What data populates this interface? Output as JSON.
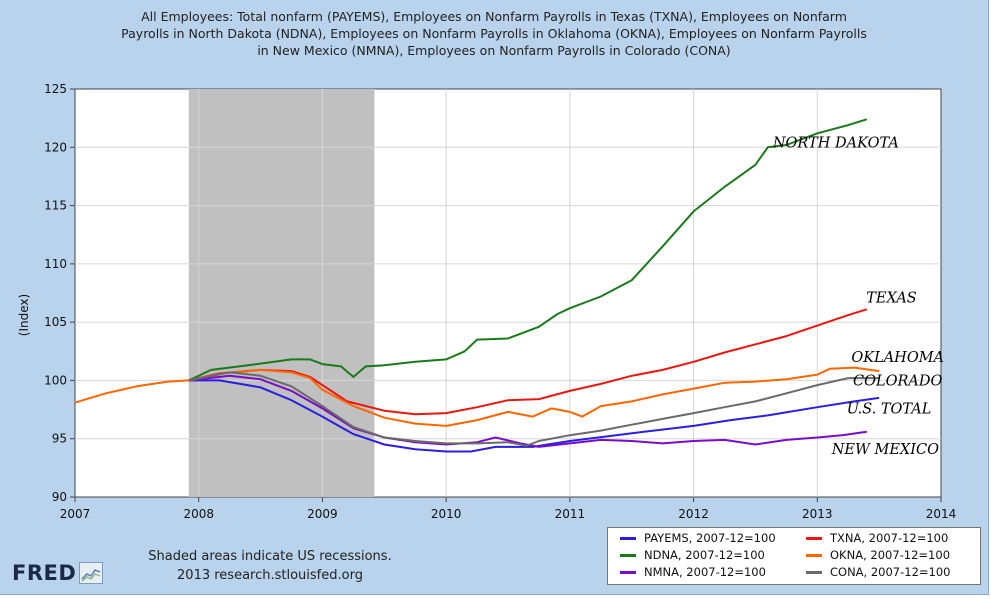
{
  "chart_data": {
    "type": "line",
    "title_lines": [
      "All Employees: Total nonfarm (PAYEMS), Employees on Nonfarm Payrolls in Texas (TXNA), Employees on Nonfarm",
      "Payrolls in North Dakota (NDNA), Employees on Nonfarm Payrolls in Oklahoma (OKNA), Employees on Nonfarm Payrolls",
      "in New Mexico (NMNA), Employees on Nonfarm Payrolls in Colorado (CONA)"
    ],
    "ylabel": "(Index)",
    "xlabel": "",
    "xlim": [
      2007,
      2014
    ],
    "ylim": [
      90,
      125
    ],
    "x_ticks": [
      "2007",
      "2008",
      "2009",
      "2010",
      "2011",
      "2012",
      "2013",
      "2014"
    ],
    "y_ticks": [
      "90",
      "95",
      "100",
      "105",
      "110",
      "115",
      "120",
      "125"
    ],
    "grid": true,
    "recession_band": [
      2007.92,
      2009.42
    ],
    "series": [
      {
        "name": "PAYEMS, 2007-12=100",
        "color": "#2a1ee0",
        "points": [
          [
            2007.92,
            100
          ],
          [
            2008.17,
            100
          ],
          [
            2008.5,
            99.4
          ],
          [
            2008.75,
            98.3
          ],
          [
            2009,
            96.9
          ],
          [
            2009.25,
            95.4
          ],
          [
            2009.5,
            94.5
          ],
          [
            2009.75,
            94.1
          ],
          [
            2010,
            93.9
          ],
          [
            2010.2,
            93.9
          ],
          [
            2010.4,
            94.3
          ],
          [
            2010.7,
            94.3
          ],
          [
            2011,
            94.8
          ],
          [
            2011.3,
            95.2
          ],
          [
            2011.6,
            95.6
          ],
          [
            2012,
            96.1
          ],
          [
            2012.3,
            96.6
          ],
          [
            2012.6,
            97
          ],
          [
            2013,
            97.7
          ],
          [
            2013.3,
            98.2
          ],
          [
            2013.5,
            98.5
          ]
        ]
      },
      {
        "name": "TXNA, 2007-12=100",
        "color": "#e8170f",
        "points": [
          [
            2007.92,
            100
          ],
          [
            2008.17,
            100.6
          ],
          [
            2008.5,
            100.9
          ],
          [
            2008.75,
            100.8
          ],
          [
            2008.9,
            100.3
          ],
          [
            2009,
            99.6
          ],
          [
            2009.2,
            98.2
          ],
          [
            2009.5,
            97.4
          ],
          [
            2009.75,
            97.1
          ],
          [
            2010,
            97.2
          ],
          [
            2010.25,
            97.7
          ],
          [
            2010.5,
            98.3
          ],
          [
            2010.75,
            98.4
          ],
          [
            2011,
            99.1
          ],
          [
            2011.25,
            99.7
          ],
          [
            2011.5,
            100.4
          ],
          [
            2011.75,
            100.9
          ],
          [
            2012,
            101.6
          ],
          [
            2012.25,
            102.4
          ],
          [
            2012.5,
            103.1
          ],
          [
            2012.75,
            103.8
          ],
          [
            2013,
            104.7
          ],
          [
            2013.25,
            105.6
          ],
          [
            2013.4,
            106.1
          ]
        ]
      },
      {
        "name": "NDNA, 2007-12=100",
        "color": "#1a7a1a",
        "points": [
          [
            2007.92,
            100
          ],
          [
            2008.1,
            100.9
          ],
          [
            2008.4,
            101.3
          ],
          [
            2008.75,
            101.8
          ],
          [
            2008.9,
            101.8
          ],
          [
            2009,
            101.4
          ],
          [
            2009.15,
            101.2
          ],
          [
            2009.25,
            100.3
          ],
          [
            2009.35,
            101.2
          ],
          [
            2009.5,
            101.3
          ],
          [
            2009.75,
            101.6
          ],
          [
            2010,
            101.8
          ],
          [
            2010.15,
            102.5
          ],
          [
            2010.25,
            103.5
          ],
          [
            2010.5,
            103.6
          ],
          [
            2010.75,
            104.6
          ],
          [
            2010.9,
            105.7
          ],
          [
            2011,
            106.2
          ],
          [
            2011.25,
            107.2
          ],
          [
            2011.5,
            108.6
          ],
          [
            2011.75,
            111.5
          ],
          [
            2012,
            114.5
          ],
          [
            2012.25,
            116.6
          ],
          [
            2012.5,
            118.5
          ],
          [
            2012.6,
            120
          ],
          [
            2012.75,
            120.2
          ],
          [
            2013,
            121.2
          ],
          [
            2013.25,
            121.9
          ],
          [
            2013.4,
            122.4
          ]
        ]
      },
      {
        "name": "OKNA, 2007-12=100",
        "color": "#ff6600",
        "points": [
          [
            2007,
            98.1
          ],
          [
            2007.25,
            98.9
          ],
          [
            2007.5,
            99.5
          ],
          [
            2007.75,
            99.9
          ],
          [
            2007.92,
            100
          ],
          [
            2008.2,
            100.6
          ],
          [
            2008.5,
            100.9
          ],
          [
            2008.75,
            100.7
          ],
          [
            2008.9,
            100.2
          ],
          [
            2009,
            99.2
          ],
          [
            2009.25,
            97.8
          ],
          [
            2009.5,
            96.8
          ],
          [
            2009.75,
            96.3
          ],
          [
            2010,
            96.1
          ],
          [
            2010.25,
            96.6
          ],
          [
            2010.5,
            97.3
          ],
          [
            2010.7,
            96.9
          ],
          [
            2010.85,
            97.6
          ],
          [
            2011,
            97.3
          ],
          [
            2011.1,
            96.9
          ],
          [
            2011.25,
            97.8
          ],
          [
            2011.5,
            98.2
          ],
          [
            2011.75,
            98.8
          ],
          [
            2012,
            99.3
          ],
          [
            2012.25,
            99.8
          ],
          [
            2012.5,
            99.9
          ],
          [
            2012.75,
            100.1
          ],
          [
            2013,
            100.5
          ],
          [
            2013.1,
            101
          ],
          [
            2013.3,
            101.1
          ],
          [
            2013.5,
            100.8
          ]
        ]
      },
      {
        "name": "NMNA, 2007-12=100",
        "color": "#7a0dc8",
        "points": [
          [
            2007.92,
            100
          ],
          [
            2008.25,
            100.4
          ],
          [
            2008.5,
            100.1
          ],
          [
            2008.75,
            99.1
          ],
          [
            2009,
            97.6
          ],
          [
            2009.25,
            95.9
          ],
          [
            2009.5,
            95.1
          ],
          [
            2009.75,
            94.7
          ],
          [
            2010,
            94.5
          ],
          [
            2010.25,
            94.7
          ],
          [
            2010.4,
            95.1
          ],
          [
            2010.6,
            94.6
          ],
          [
            2010.75,
            94.3
          ],
          [
            2011,
            94.6
          ],
          [
            2011.25,
            94.9
          ],
          [
            2011.5,
            94.8
          ],
          [
            2011.75,
            94.6
          ],
          [
            2012,
            94.8
          ],
          [
            2012.25,
            94.9
          ],
          [
            2012.5,
            94.5
          ],
          [
            2012.75,
            94.9
          ],
          [
            2013,
            95.1
          ],
          [
            2013.2,
            95.3
          ],
          [
            2013.4,
            95.6
          ]
        ]
      },
      {
        "name": "CONA, 2007-12=100",
        "color": "#6a6a6a",
        "points": [
          [
            2007.92,
            100
          ],
          [
            2008.25,
            100.7
          ],
          [
            2008.5,
            100.4
          ],
          [
            2008.75,
            99.5
          ],
          [
            2009,
            97.8
          ],
          [
            2009.25,
            96
          ],
          [
            2009.5,
            95.1
          ],
          [
            2009.75,
            94.8
          ],
          [
            2010,
            94.6
          ],
          [
            2010.25,
            94.6
          ],
          [
            2010.5,
            94.7
          ],
          [
            2010.65,
            94.4
          ],
          [
            2010.75,
            94.8
          ],
          [
            2011,
            95.3
          ],
          [
            2011.25,
            95.7
          ],
          [
            2011.5,
            96.2
          ],
          [
            2011.75,
            96.7
          ],
          [
            2012,
            97.2
          ],
          [
            2012.25,
            97.7
          ],
          [
            2012.5,
            98.2
          ],
          [
            2012.75,
            98.9
          ],
          [
            2013,
            99.6
          ],
          [
            2013.25,
            100.2
          ],
          [
            2013.5,
            100.2
          ]
        ]
      }
    ],
    "annotations": [
      {
        "text": "NORTH DAKOTA",
        "x": 2013.15,
        "y": 120.4
      },
      {
        "text": "TEXAS",
        "x": 2013.6,
        "y": 107.1
      },
      {
        "text": "OKLAHOMA",
        "x": 2013.65,
        "y": 102.0
      },
      {
        "text": "COLORADO",
        "x": 2013.65,
        "y": 100.0
      },
      {
        "text": "U.S. TOTAL",
        "x": 2013.58,
        "y": 97.6
      },
      {
        "text": "NEW MEXICO",
        "x": 2013.55,
        "y": 94.1
      }
    ],
    "legend_position": "bottom-right"
  },
  "footer": {
    "recession_note": "Shaded areas indicate US recessions.",
    "source_line": "2013 research.stlouisfed.org",
    "logo_text": "FRED"
  }
}
